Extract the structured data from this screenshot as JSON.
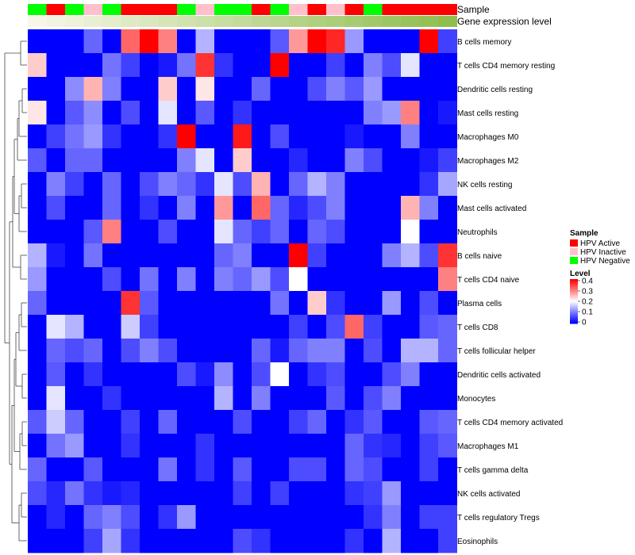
{
  "chart_data": {
    "type": "heatmap",
    "annotation_labels": [
      "Sample",
      "Gene expression level"
    ],
    "sample_annotation": [
      "HPV Negative",
      "HPV Active",
      "HPV Negative",
      "HPV Inactive",
      "HPV Negative",
      "HPV Active",
      "HPV Active",
      "HPV Active",
      "HPV Negative",
      "HPV Inactive",
      "HPV Negative",
      "HPV Negative",
      "HPV Active",
      "HPV Negative",
      "HPV Inactive",
      "HPV Active",
      "HPV Inactive",
      "HPV Active",
      "HPV Negative",
      "HPV Active",
      "HPV Active",
      "HPV Active",
      "HPV Active"
    ],
    "expression_level_gradient": [
      "#f7f7e8",
      "#8fbe4e"
    ],
    "rows": [
      "B cells memory",
      "T cells CD4 memory resting",
      "Dendritic cells resting",
      "Mast cells resting",
      "Macrophages M0",
      "Macrophages M2",
      "NK cells resting",
      "Mast cells activated",
      "Neutrophils",
      "B cells naive",
      "T cells CD4 naive",
      "Plasma cells",
      "T cells CD8",
      "T cells follicular helper",
      "Dendritic cells activated",
      "Monocytes",
      "T cells CD4 memory activated",
      "Macrophages M1",
      "T cells gamma delta",
      "NK cells activated",
      "T cells regulatory  Tregs",
      "Eosinophils"
    ],
    "values": [
      [
        0.0,
        0.0,
        0.0,
        0.08,
        0.0,
        0.32,
        0.4,
        0.3,
        0.0,
        0.14,
        0.0,
        0.0,
        0.0,
        0.07,
        0.28,
        0.4,
        0.37,
        0.12,
        0.0,
        0.0,
        0.0,
        0.4,
        0.05
      ],
      [
        0.24,
        0.0,
        0.0,
        0.0,
        0.09,
        0.05,
        0.0,
        0.02,
        0.09,
        0.36,
        0.04,
        0.0,
        0.0,
        0.4,
        0.0,
        0.0,
        0.05,
        0.0,
        0.1,
        0.06,
        0.18,
        0.0,
        0.0
      ],
      [
        0.0,
        0.0,
        0.11,
        0.26,
        0.1,
        0.0,
        0.0,
        0.24,
        0.0,
        0.22,
        0.0,
        0.0,
        0.08,
        0.0,
        0.0,
        0.06,
        0.1,
        0.07,
        0.12,
        0.0,
        0.0,
        0.0,
        0.0
      ],
      [
        0.22,
        0.0,
        0.07,
        0.11,
        0.0,
        0.06,
        0.0,
        0.18,
        0.0,
        0.07,
        0.0,
        0.04,
        0.0,
        0.0,
        0.0,
        0.0,
        0.0,
        0.0,
        0.1,
        0.12,
        0.3,
        0.0,
        0.02
      ],
      [
        0.0,
        0.05,
        0.09,
        0.12,
        0.04,
        0.0,
        0.0,
        0.04,
        0.4,
        0.0,
        0.0,
        0.38,
        0.0,
        0.06,
        0.0,
        0.0,
        0.0,
        0.02,
        0.0,
        0.0,
        0.1,
        0.0,
        0.0
      ],
      [
        0.07,
        0.0,
        0.08,
        0.08,
        0.0,
        0.0,
        0.0,
        0.0,
        0.1,
        0.18,
        0.0,
        0.24,
        0.0,
        0.0,
        0.03,
        0.0,
        0.0,
        0.1,
        0.06,
        0.0,
        0.0,
        0.02,
        0.05
      ],
      [
        0.0,
        0.1,
        0.05,
        0.0,
        0.08,
        0.0,
        0.06,
        0.1,
        0.08,
        0.04,
        0.18,
        0.06,
        0.26,
        0.0,
        0.08,
        0.14,
        0.1,
        0.0,
        0.0,
        0.0,
        0.0,
        0.04,
        0.13
      ],
      [
        0.0,
        0.06,
        0.0,
        0.0,
        0.08,
        0.0,
        0.04,
        0.0,
        0.1,
        0.0,
        0.28,
        0.0,
        0.32,
        0.08,
        0.03,
        0.06,
        0.1,
        0.0,
        0.0,
        0.0,
        0.26,
        0.1,
        0.0
      ],
      [
        0.0,
        0.0,
        0.0,
        0.07,
        0.3,
        0.0,
        0.0,
        0.06,
        0.0,
        0.0,
        0.18,
        0.08,
        0.05,
        0.08,
        0.0,
        0.08,
        0.06,
        0.0,
        0.0,
        0.0,
        0.2,
        0.0,
        0.0
      ],
      [
        0.14,
        0.02,
        0.0,
        0.09,
        0.0,
        0.0,
        0.0,
        0.0,
        0.0,
        0.0,
        0.08,
        0.1,
        0.0,
        0.0,
        0.4,
        0.05,
        0.0,
        0.0,
        0.0,
        0.1,
        0.14,
        0.06,
        0.36
      ],
      [
        0.12,
        0.0,
        0.0,
        0.0,
        0.06,
        0.0,
        0.09,
        0.0,
        0.1,
        0.0,
        0.1,
        0.08,
        0.12,
        0.06,
        0.2,
        0.0,
        0.0,
        0.0,
        0.0,
        0.0,
        0.0,
        0.0,
        0.3
      ],
      [
        0.08,
        0.0,
        0.0,
        0.0,
        0.0,
        0.36,
        0.07,
        0.0,
        0.0,
        0.0,
        0.0,
        0.0,
        0.0,
        0.09,
        0.0,
        0.24,
        0.04,
        0.0,
        0.0,
        0.12,
        0.0,
        0.06,
        0.0
      ],
      [
        0.0,
        0.18,
        0.14,
        0.0,
        0.0,
        0.16,
        0.05,
        0.0,
        0.0,
        0.0,
        0.0,
        0.0,
        0.0,
        0.0,
        0.05,
        0.0,
        0.06,
        0.32,
        0.05,
        0.0,
        0.0,
        0.07,
        0.08
      ],
      [
        0.0,
        0.08,
        0.06,
        0.08,
        0.0,
        0.06,
        0.1,
        0.06,
        0.0,
        0.0,
        0.0,
        0.0,
        0.08,
        0.02,
        0.08,
        0.1,
        0.1,
        0.0,
        0.06,
        0.0,
        0.14,
        0.14,
        0.08
      ],
      [
        0.0,
        0.07,
        0.0,
        0.04,
        0.0,
        0.0,
        0.0,
        0.0,
        0.06,
        0.02,
        0.11,
        0.0,
        0.06,
        0.2,
        0.0,
        0.04,
        0.06,
        0.0,
        0.0,
        0.06,
        0.1,
        0.0,
        0.0
      ],
      [
        0.0,
        0.18,
        0.0,
        0.0,
        0.04,
        0.0,
        0.0,
        0.0,
        0.0,
        0.0,
        0.14,
        0.0,
        0.1,
        0.0,
        0.0,
        0.0,
        0.07,
        0.0,
        0.06,
        0.1,
        0.0,
        0.0,
        0.0
      ],
      [
        0.07,
        0.16,
        0.08,
        0.0,
        0.0,
        0.05,
        0.0,
        0.08,
        0.0,
        0.0,
        0.0,
        0.06,
        0.0,
        0.0,
        0.05,
        0.08,
        0.0,
        0.04,
        0.07,
        0.0,
        0.0,
        0.07,
        0.08
      ],
      [
        0.0,
        0.09,
        0.12,
        0.0,
        0.0,
        0.04,
        0.0,
        0.0,
        0.0,
        0.04,
        0.0,
        0.0,
        0.0,
        0.0,
        0.0,
        0.0,
        0.0,
        0.08,
        0.04,
        0.03,
        0.0,
        0.05,
        0.07
      ],
      [
        0.08,
        0.0,
        0.0,
        0.07,
        0.0,
        0.0,
        0.0,
        0.09,
        0.0,
        0.04,
        0.0,
        0.07,
        0.0,
        0.0,
        0.06,
        0.06,
        0.0,
        0.08,
        0.06,
        0.0,
        0.0,
        0.05,
        0.0
      ],
      [
        0.06,
        0.03,
        0.09,
        0.04,
        0.02,
        0.03,
        0.0,
        0.0,
        0.0,
        0.0,
        0.0,
        0.05,
        0.0,
        0.05,
        0.0,
        0.0,
        0.0,
        0.04,
        0.05,
        0.12,
        0.0,
        0.0,
        0.0
      ],
      [
        0.0,
        0.03,
        0.0,
        0.08,
        0.1,
        0.06,
        0.0,
        0.04,
        0.12,
        0.0,
        0.0,
        0.0,
        0.0,
        0.0,
        0.0,
        0.0,
        0.0,
        0.0,
        0.04,
        0.1,
        0.0,
        0.05,
        0.05
      ],
      [
        0.0,
        0.0,
        0.0,
        0.05,
        0.13,
        0.04,
        0.0,
        0.0,
        0.0,
        0.0,
        0.0,
        0.06,
        0.04,
        0.0,
        0.0,
        0.0,
        0.0,
        0.04,
        0.0,
        0.14,
        0.0,
        0.0,
        0.05
      ]
    ],
    "color_scale": {
      "low": "#0000ff",
      "mid": "#ffffff",
      "high": "#ff0000",
      "min": 0,
      "mid_value": 0.2,
      "max": 0.4
    },
    "legend": {
      "sample_title": "Sample",
      "sample_items": [
        {
          "label": "HPV Active",
          "color": "#ff0000"
        },
        {
          "label": "HPV Inactive",
          "color": "#ffc0cb"
        },
        {
          "label": "HPV Negative",
          "color": "#00ff00"
        }
      ],
      "level_title": "Level",
      "level_ticks": [
        "0.4",
        "0.3",
        "0.2",
        "0.1",
        "0"
      ],
      "placement": "right"
    },
    "dendrogram": "row",
    "grid": false
  }
}
